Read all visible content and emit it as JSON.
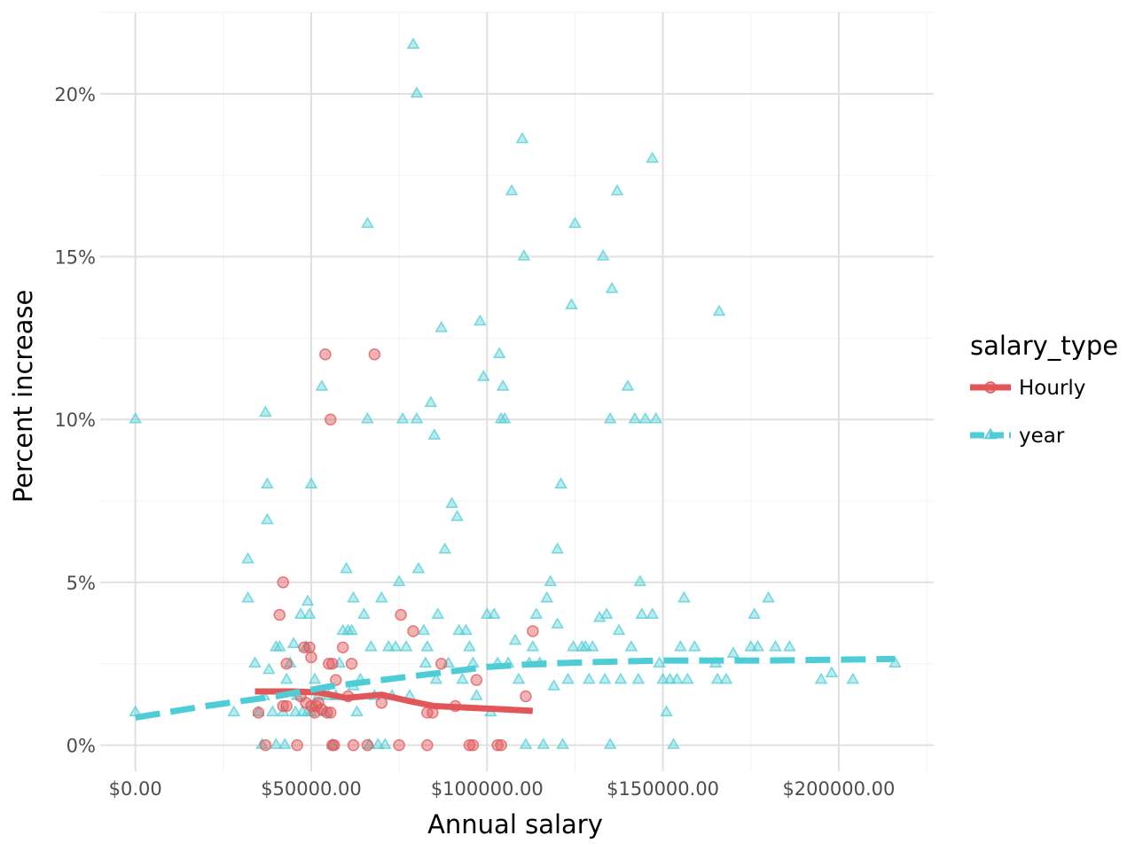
{
  "chart_data": {
    "type": "scatter",
    "title": "",
    "xlabel": "Annual salary",
    "ylabel": "Percent increase",
    "xlim": [
      -10000,
      227000
    ],
    "ylim": [
      -0.8,
      22.5
    ],
    "grid": true,
    "x_ticks": [
      {
        "value": 0,
        "label": "$0.00"
      },
      {
        "value": 50000,
        "label": "$50000.00"
      },
      {
        "value": 100000,
        "label": "$100000.00"
      },
      {
        "value": 150000,
        "label": "$150000.00"
      },
      {
        "value": 200000,
        "label": "$200000.00"
      }
    ],
    "y_ticks": [
      {
        "value": 0,
        "label": "0%"
      },
      {
        "value": 5,
        "label": "5%"
      },
      {
        "value": 10,
        "label": "10%"
      },
      {
        "value": 15,
        "label": "15%"
      },
      {
        "value": 20,
        "label": "20%"
      }
    ],
    "legend": {
      "title": "salary_type",
      "placement": "right"
    },
    "series": [
      {
        "name": "Hourly",
        "color": "#e15759",
        "marker": "circle",
        "line_style": "solid",
        "points": [
          [
            35000,
            1
          ],
          [
            37000,
            0
          ],
          [
            41000,
            4
          ],
          [
            42000,
            5
          ],
          [
            42000,
            1.2
          ],
          [
            43000,
            2.5
          ],
          [
            43000,
            1.2
          ],
          [
            46000,
            0
          ],
          [
            47000,
            1.5
          ],
          [
            48000,
            3
          ],
          [
            48500,
            1.3
          ],
          [
            49500,
            3
          ],
          [
            50000,
            2.7
          ],
          [
            50000,
            1.2
          ],
          [
            51000,
            1
          ],
          [
            51500,
            1.2
          ],
          [
            52000,
            1.3
          ],
          [
            53000,
            1.1
          ],
          [
            54000,
            12
          ],
          [
            54500,
            1
          ],
          [
            55000,
            2.5
          ],
          [
            55500,
            1
          ],
          [
            55500,
            10
          ],
          [
            56000,
            2.5
          ],
          [
            56000,
            0
          ],
          [
            56500,
            0
          ],
          [
            57000,
            2
          ],
          [
            59000,
            3
          ],
          [
            60500,
            1.5
          ],
          [
            61500,
            2.5
          ],
          [
            62000,
            0
          ],
          [
            66000,
            0
          ],
          [
            68000,
            12
          ],
          [
            70000,
            1.3
          ],
          [
            75000,
            0
          ],
          [
            75500,
            4
          ],
          [
            79000,
            3.5
          ],
          [
            83000,
            1
          ],
          [
            83000,
            0
          ],
          [
            84500,
            1
          ],
          [
            87000,
            2.5
          ],
          [
            91000,
            1.2
          ],
          [
            95000,
            0
          ],
          [
            96000,
            0
          ],
          [
            97000,
            2
          ],
          [
            103000,
            0
          ],
          [
            104000,
            0
          ],
          [
            111000,
            1.5
          ],
          [
            113000,
            3.5
          ]
        ],
        "trend": [
          [
            34000,
            1.65
          ],
          [
            45000,
            1.65
          ],
          [
            52000,
            1.62
          ],
          [
            60000,
            1.45
          ],
          [
            70000,
            1.55
          ],
          [
            78000,
            1.35
          ],
          [
            85000,
            1.2
          ],
          [
            95000,
            1.15
          ],
          [
            105000,
            1.1
          ],
          [
            113000,
            1.05
          ]
        ]
      },
      {
        "name": "year",
        "color": "#4fcdd6",
        "marker": "triangle",
        "line_style": "dashed",
        "points": [
          [
            0,
            10
          ],
          [
            0,
            1
          ],
          [
            28000,
            1
          ],
          [
            32000,
            5.7
          ],
          [
            32000,
            4.5
          ],
          [
            34000,
            2.5
          ],
          [
            35000,
            1
          ],
          [
            36000,
            0
          ],
          [
            36500,
            1.5
          ],
          [
            37000,
            10.2
          ],
          [
            37500,
            8
          ],
          [
            37500,
            6.9
          ],
          [
            38000,
            2.3
          ],
          [
            39000,
            1
          ],
          [
            40000,
            3
          ],
          [
            40000,
            0
          ],
          [
            41000,
            3
          ],
          [
            42000,
            1
          ],
          [
            42500,
            0
          ],
          [
            43000,
            2
          ],
          [
            44000,
            2.5
          ],
          [
            45000,
            3.1
          ],
          [
            45500,
            1
          ],
          [
            46000,
            1.5
          ],
          [
            47000,
            4
          ],
          [
            47500,
            1
          ],
          [
            48500,
            3
          ],
          [
            49000,
            4.4
          ],
          [
            49000,
            1
          ],
          [
            49500,
            4
          ],
          [
            50000,
            8
          ],
          [
            50000,
            1
          ],
          [
            51000,
            2
          ],
          [
            52000,
            1.5
          ],
          [
            53000,
            11
          ],
          [
            54000,
            1
          ],
          [
            55000,
            1.5
          ],
          [
            56000,
            0
          ],
          [
            57000,
            1.5
          ],
          [
            58000,
            2.5
          ],
          [
            59000,
            3.5
          ],
          [
            60000,
            5.4
          ],
          [
            60500,
            3.5
          ],
          [
            61500,
            3.5
          ],
          [
            62000,
            4.5
          ],
          [
            62000,
            1.8
          ],
          [
            63000,
            1
          ],
          [
            64000,
            2
          ],
          [
            65000,
            4
          ],
          [
            66000,
            16
          ],
          [
            66000,
            10
          ],
          [
            66500,
            0
          ],
          [
            67000,
            3
          ],
          [
            68000,
            1.5
          ],
          [
            69000,
            0
          ],
          [
            70000,
            4.5
          ],
          [
            71000,
            0
          ],
          [
            72000,
            3
          ],
          [
            73000,
            1.5
          ],
          [
            74000,
            3
          ],
          [
            75000,
            5
          ],
          [
            76000,
            10
          ],
          [
            77000,
            3
          ],
          [
            78000,
            1.5
          ],
          [
            79000,
            21.5
          ],
          [
            80000,
            20
          ],
          [
            80000,
            10
          ],
          [
            80500,
            5.4
          ],
          [
            82000,
            3.5
          ],
          [
            82500,
            2.5
          ],
          [
            83000,
            3
          ],
          [
            84000,
            10.5
          ],
          [
            85000,
            9.5
          ],
          [
            85500,
            2
          ],
          [
            86000,
            4
          ],
          [
            87000,
            12.8
          ],
          [
            88000,
            6
          ],
          [
            89000,
            2.5
          ],
          [
            90000,
            7.4
          ],
          [
            91500,
            7
          ],
          [
            92000,
            3.5
          ],
          [
            93000,
            2
          ],
          [
            94000,
            3.5
          ],
          [
            95000,
            3
          ],
          [
            96000,
            2.5
          ],
          [
            97000,
            1.5
          ],
          [
            98000,
            13
          ],
          [
            99000,
            11.3
          ],
          [
            100000,
            4
          ],
          [
            101000,
            1
          ],
          [
            102000,
            4
          ],
          [
            103000,
            2.5
          ],
          [
            103500,
            12
          ],
          [
            104000,
            10
          ],
          [
            104500,
            11
          ],
          [
            105000,
            10
          ],
          [
            106000,
            2.5
          ],
          [
            107000,
            17
          ],
          [
            108000,
            3.2
          ],
          [
            109000,
            2
          ],
          [
            110000,
            18.6
          ],
          [
            110500,
            15
          ],
          [
            111000,
            0
          ],
          [
            112000,
            2.5
          ],
          [
            113000,
            3
          ],
          [
            114000,
            4
          ],
          [
            115000,
            2.5
          ],
          [
            116000,
            0
          ],
          [
            117000,
            4.5
          ],
          [
            118000,
            5
          ],
          [
            119000,
            1.8
          ],
          [
            120000,
            6
          ],
          [
            120000,
            3.7
          ],
          [
            121000,
            8
          ],
          [
            121500,
            0
          ],
          [
            123000,
            2
          ],
          [
            124000,
            13.5
          ],
          [
            124500,
            3
          ],
          [
            125000,
            16
          ],
          [
            127000,
            3
          ],
          [
            128000,
            3
          ],
          [
            129000,
            2
          ],
          [
            130000,
            3
          ],
          [
            132000,
            3.9
          ],
          [
            133000,
            15
          ],
          [
            133500,
            2
          ],
          [
            134000,
            4
          ],
          [
            135000,
            10
          ],
          [
            135000,
            0
          ],
          [
            135500,
            14
          ],
          [
            137000,
            17
          ],
          [
            137500,
            3.5
          ],
          [
            138000,
            2
          ],
          [
            140000,
            11
          ],
          [
            141000,
            3
          ],
          [
            142000,
            10
          ],
          [
            143000,
            2
          ],
          [
            143500,
            5
          ],
          [
            144000,
            4
          ],
          [
            145000,
            10
          ],
          [
            147000,
            18
          ],
          [
            147000,
            4
          ],
          [
            148000,
            10
          ],
          [
            149000,
            2.5
          ],
          [
            150000,
            2
          ],
          [
            151000,
            1
          ],
          [
            152000,
            2
          ],
          [
            153000,
            0
          ],
          [
            154000,
            2
          ],
          [
            155000,
            3
          ],
          [
            156000,
            4.5
          ],
          [
            157000,
            2
          ],
          [
            159000,
            3
          ],
          [
            165000,
            2.5
          ],
          [
            165500,
            2
          ],
          [
            166000,
            13.3
          ],
          [
            168000,
            2
          ],
          [
            170000,
            2.8
          ],
          [
            175000,
            3
          ],
          [
            176000,
            4
          ],
          [
            177000,
            3
          ],
          [
            180000,
            4.5
          ],
          [
            182000,
            3
          ],
          [
            186000,
            3
          ],
          [
            195000,
            2
          ],
          [
            198000,
            2.2
          ],
          [
            204000,
            2
          ],
          [
            216000,
            2.5
          ]
        ],
        "trend": [
          [
            0,
            0.85
          ],
          [
            20000,
            1.2
          ],
          [
            40000,
            1.5
          ],
          [
            55000,
            1.8
          ],
          [
            70000,
            2
          ],
          [
            85000,
            2.2
          ],
          [
            100000,
            2.4
          ],
          [
            115000,
            2.5
          ],
          [
            130000,
            2.55
          ],
          [
            150000,
            2.6
          ],
          [
            180000,
            2.6
          ],
          [
            216000,
            2.65
          ]
        ]
      }
    ]
  }
}
